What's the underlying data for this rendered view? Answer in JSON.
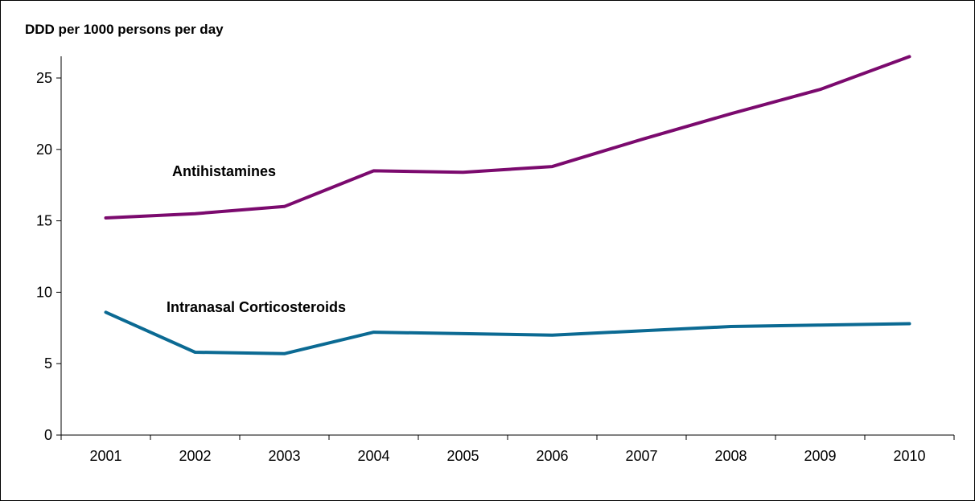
{
  "chart_data": {
    "type": "line",
    "title": "",
    "xlabel": "",
    "ylabel": "DDD per 1000 persons per day",
    "categories": [
      "2001",
      "2002",
      "2003",
      "2004",
      "2005",
      "2006",
      "2007",
      "2008",
      "2009",
      "2010"
    ],
    "ylim": [
      0,
      27
    ],
    "yticks": [
      "0",
      "5",
      "10",
      "15",
      "20",
      "25"
    ],
    "grid": false,
    "legend": "none",
    "series": [
      {
        "name": "Antihistamines",
        "color": "#7b0a6e",
        "values": [
          15.2,
          15.5,
          16.0,
          18.5,
          18.4,
          18.8,
          20.7,
          22.5,
          24.2,
          26.5
        ]
      },
      {
        "name": "Intranasal Corticosteroids",
        "color": "#0b6a93",
        "values": [
          8.6,
          5.8,
          5.7,
          7.2,
          7.1,
          7.0,
          7.3,
          7.6,
          7.7,
          7.8
        ]
      }
    ]
  }
}
